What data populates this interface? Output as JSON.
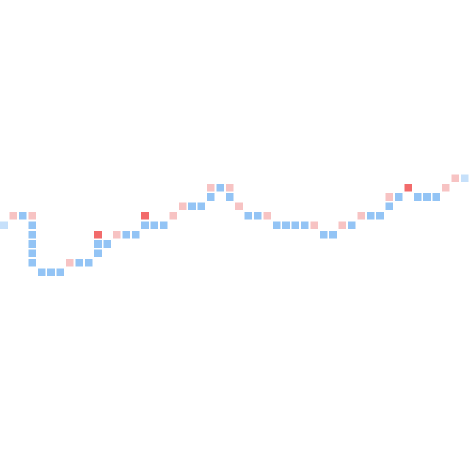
{
  "chart_data": {
    "type": "scatter",
    "title": "",
    "xlabel": "",
    "ylabel": "",
    "x_range": [
      0,
      50
    ],
    "y_range": [
      0,
      50
    ],
    "grid": false,
    "legend": "none",
    "colors": {
      "blue": "#93c4f5",
      "light-blue": "#c6e0fa",
      "pink": "#f7c3c3",
      "red": "#f26b6b"
    },
    "points": [
      {
        "x": 0,
        "y": 26,
        "color": "light-blue"
      },
      {
        "x": 1,
        "y": 27,
        "color": "pink"
      },
      {
        "x": 2,
        "y": 27,
        "color": "blue"
      },
      {
        "x": 3,
        "y": 27,
        "color": "pink"
      },
      {
        "x": 3,
        "y": 26,
        "color": "blue"
      },
      {
        "x": 3,
        "y": 25,
        "color": "blue"
      },
      {
        "x": 3,
        "y": 24,
        "color": "blue"
      },
      {
        "x": 3,
        "y": 23,
        "color": "blue"
      },
      {
        "x": 3,
        "y": 22,
        "color": "blue"
      },
      {
        "x": 4,
        "y": 21,
        "color": "blue"
      },
      {
        "x": 5,
        "y": 21,
        "color": "blue"
      },
      {
        "x": 6,
        "y": 21,
        "color": "blue"
      },
      {
        "x": 7,
        "y": 22,
        "color": "pink"
      },
      {
        "x": 8,
        "y": 22,
        "color": "blue"
      },
      {
        "x": 9,
        "y": 22,
        "color": "blue"
      },
      {
        "x": 10,
        "y": 23,
        "color": "blue"
      },
      {
        "x": 10,
        "y": 24,
        "color": "blue"
      },
      {
        "x": 10,
        "y": 25,
        "color": "red"
      },
      {
        "x": 11,
        "y": 24,
        "color": "blue"
      },
      {
        "x": 12,
        "y": 25,
        "color": "pink"
      },
      {
        "x": 13,
        "y": 25,
        "color": "blue"
      },
      {
        "x": 14,
        "y": 25,
        "color": "blue"
      },
      {
        "x": 15,
        "y": 26,
        "color": "blue"
      },
      {
        "x": 15,
        "y": 27,
        "color": "red"
      },
      {
        "x": 16,
        "y": 26,
        "color": "blue"
      },
      {
        "x": 17,
        "y": 26,
        "color": "blue"
      },
      {
        "x": 18,
        "y": 27,
        "color": "pink"
      },
      {
        "x": 19,
        "y": 28,
        "color": "pink"
      },
      {
        "x": 20,
        "y": 28,
        "color": "blue"
      },
      {
        "x": 21,
        "y": 28,
        "color": "blue"
      },
      {
        "x": 22,
        "y": 29,
        "color": "blue"
      },
      {
        "x": 22,
        "y": 30,
        "color": "pink"
      },
      {
        "x": 23,
        "y": 30,
        "color": "blue"
      },
      {
        "x": 24,
        "y": 30,
        "color": "pink"
      },
      {
        "x": 24,
        "y": 29,
        "color": "blue"
      },
      {
        "x": 25,
        "y": 28,
        "color": "pink"
      },
      {
        "x": 26,
        "y": 27,
        "color": "blue"
      },
      {
        "x": 27,
        "y": 27,
        "color": "blue"
      },
      {
        "x": 28,
        "y": 27,
        "color": "pink"
      },
      {
        "x": 29,
        "y": 26,
        "color": "blue"
      },
      {
        "x": 30,
        "y": 26,
        "color": "blue"
      },
      {
        "x": 31,
        "y": 26,
        "color": "blue"
      },
      {
        "x": 32,
        "y": 26,
        "color": "blue"
      },
      {
        "x": 33,
        "y": 26,
        "color": "pink"
      },
      {
        "x": 34,
        "y": 25,
        "color": "blue"
      },
      {
        "x": 35,
        "y": 25,
        "color": "blue"
      },
      {
        "x": 36,
        "y": 26,
        "color": "pink"
      },
      {
        "x": 37,
        "y": 26,
        "color": "blue"
      },
      {
        "x": 38,
        "y": 27,
        "color": "pink"
      },
      {
        "x": 39,
        "y": 27,
        "color": "blue"
      },
      {
        "x": 40,
        "y": 27,
        "color": "blue"
      },
      {
        "x": 41,
        "y": 28,
        "color": "blue"
      },
      {
        "x": 41,
        "y": 29,
        "color": "pink"
      },
      {
        "x": 42,
        "y": 29,
        "color": "blue"
      },
      {
        "x": 43,
        "y": 30,
        "color": "red"
      },
      {
        "x": 44,
        "y": 29,
        "color": "blue"
      },
      {
        "x": 45,
        "y": 29,
        "color": "blue"
      },
      {
        "x": 46,
        "y": 29,
        "color": "blue"
      },
      {
        "x": 47,
        "y": 30,
        "color": "pink"
      },
      {
        "x": 48,
        "y": 31,
        "color": "pink"
      },
      {
        "x": 49,
        "y": 31,
        "color": "light-blue"
      }
    ]
  }
}
